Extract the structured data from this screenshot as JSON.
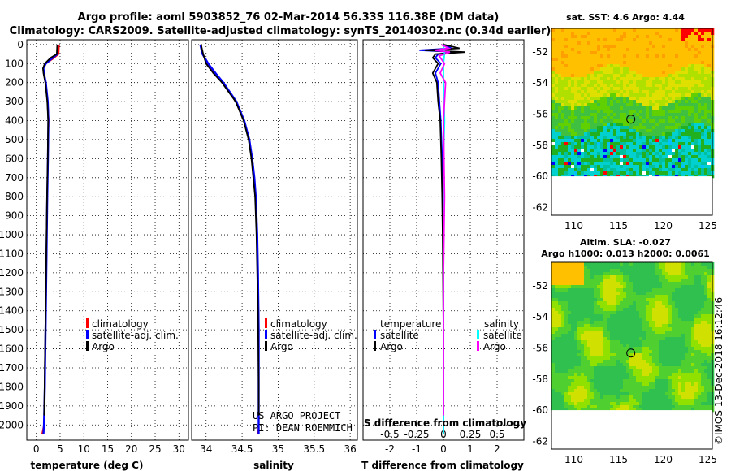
{
  "title_line1": "Argo profile: aoml 5903852_76 02-Mar-2014 56.33S 116.38E (DM data)",
  "title_line2": "Climatology: CARS2009. Satellite-adjusted climatology: synTS_20140302.nc (0.34d earlier)",
  "colors": {
    "climatology": "#ff0000",
    "satellite_adj": "#0000ff",
    "argo": "#000000",
    "satellite_sal": "#00ffff",
    "argo_sal": "#ff00ff",
    "grid": "#000000",
    "mask": "#ffffff"
  },
  "chart_data": [
    {
      "type": "line",
      "name": "temperature-profile",
      "xlabel": "temperature (deg C)",
      "ylabel": "",
      "xlim": [
        -2,
        32
      ],
      "ylim": [
        2080,
        -25
      ],
      "x_ticks": [
        0,
        5,
        10,
        15,
        20,
        25,
        30
      ],
      "y_ticks": [
        0,
        100,
        200,
        300,
        400,
        500,
        600,
        700,
        800,
        900,
        1000,
        1100,
        1200,
        1300,
        1400,
        1500,
        1600,
        1700,
        1800,
        1900,
        2000
      ],
      "series": [
        {
          "name": "climatology",
          "depth": [
            0,
            50,
            75,
            100,
            125,
            150,
            200,
            300,
            400,
            500,
            600,
            800,
            1000,
            1400,
            1800,
            2000,
            2050
          ],
          "values": [
            4.8,
            4.7,
            3.5,
            2.0,
            1.5,
            1.6,
            2.0,
            2.4,
            2.6,
            2.5,
            2.45,
            2.3,
            2.2,
            2.0,
            1.8,
            1.6,
            1.2
          ]
        },
        {
          "name": "satellite-adj. clim.",
          "depth": [
            0,
            50,
            75,
            100,
            125,
            150,
            200,
            300,
            400,
            500,
            600,
            800,
            1000,
            1400,
            1800,
            2000,
            2050
          ],
          "values": [
            4.5,
            4.4,
            3.2,
            2.0,
            1.5,
            1.6,
            2.0,
            2.4,
            2.55,
            2.5,
            2.45,
            2.3,
            2.2,
            2.0,
            1.8,
            1.6,
            1.5
          ]
        },
        {
          "name": "Argo",
          "depth": [
            0,
            50,
            70,
            100,
            125,
            150,
            200,
            300,
            400,
            500,
            600,
            800,
            1000,
            1400,
            1800,
            1950
          ],
          "values": [
            4.4,
            4.3,
            3.0,
            1.8,
            1.4,
            1.5,
            1.9,
            2.3,
            2.5,
            2.45,
            2.4,
            2.25,
            2.15,
            1.95,
            1.75,
            1.65
          ]
        }
      ],
      "legend": [
        "climatology",
        "satellite-adj. clim.",
        "Argo"
      ],
      "legend_placement": "lower-right"
    },
    {
      "type": "line",
      "name": "salinity-profile",
      "xlabel": "salinity",
      "xlim": [
        33.8,
        36.1
      ],
      "ylim": [
        2080,
        -25
      ],
      "x_ticks": [
        34,
        34.5,
        35,
        35.5,
        36
      ],
      "x_tick_labels": [
        "34",
        "34.5",
        "35",
        "35.5",
        "36"
      ],
      "series": [
        {
          "name": "climatology",
          "depth": [
            0,
            50,
            100,
            150,
            200,
            300,
            400,
            500,
            600,
            700,
            800,
            1000,
            1200,
            1500,
            1800,
            2000,
            2050
          ],
          "values": [
            33.93,
            33.95,
            34.02,
            34.12,
            34.23,
            34.42,
            34.53,
            34.6,
            34.64,
            34.67,
            34.69,
            34.71,
            34.72,
            34.73,
            34.73,
            34.73,
            34.72
          ]
        },
        {
          "name": "satellite-adj. clim.",
          "depth": [
            0,
            50,
            100,
            150,
            200,
            300,
            400,
            500,
            600,
            700,
            800,
            1000,
            1200,
            1500,
            1800,
            2000,
            2050
          ],
          "values": [
            33.92,
            33.95,
            34.03,
            34.13,
            34.24,
            34.42,
            34.53,
            34.6,
            34.64,
            34.67,
            34.69,
            34.71,
            34.72,
            34.73,
            34.73,
            34.73,
            34.73
          ]
        },
        {
          "name": "Argo",
          "depth": [
            0,
            50,
            100,
            150,
            200,
            300,
            400,
            500,
            600,
            800,
            1000,
            1400,
            1800,
            1950
          ],
          "values": [
            33.93,
            33.96,
            34.0,
            34.1,
            34.22,
            34.41,
            34.52,
            34.59,
            34.63,
            34.68,
            34.7,
            34.72,
            34.73,
            34.73
          ]
        }
      ],
      "legend": [
        "climatology",
        "satellite-adj. clim.",
        "Argo"
      ],
      "legend_placement": "lower-right"
    },
    {
      "type": "line",
      "name": "difference-profile",
      "xlabel": "T difference from climatology",
      "x2label": "S difference from climatology",
      "xlim": [
        -3,
        3
      ],
      "ylim": [
        2080,
        -25
      ],
      "x_ticks": [
        -2,
        -1,
        0,
        1,
        2
      ],
      "x2_ticks": [
        -0.5,
        -0.25,
        0,
        0.25,
        0.5
      ],
      "x2_tick_labels": [
        "-0.5",
        "-0.25",
        "0",
        "0.25",
        "0.5"
      ],
      "series": [
        {
          "name": "temperature satellite",
          "depth": [
            0,
            20,
            30,
            40,
            50,
            70,
            100,
            150,
            200,
            300,
            400,
            600,
            800,
            1000,
            1500,
            2000,
            2050
          ],
          "values": [
            0.0,
            0.3,
            -0.9,
            0.5,
            -0.2,
            -0.3,
            -0.1,
            -0.3,
            -0.2,
            -0.15,
            -0.1,
            -0.05,
            0.0,
            0.0,
            0.0,
            0.0,
            0.0
          ]
        },
        {
          "name": "temperature Argo",
          "depth": [
            0,
            20,
            30,
            40,
            50,
            70,
            100,
            150,
            200,
            300,
            400,
            600,
            800,
            1000,
            1500,
            1950
          ],
          "values": [
            0.0,
            0.6,
            -0.7,
            0.8,
            -0.3,
            -0.4,
            -0.2,
            -0.4,
            -0.25,
            -0.2,
            -0.12,
            -0.08,
            -0.05,
            -0.03,
            0.0,
            0.0
          ]
        },
        {
          "name": "salinity satellite",
          "depth": [
            0,
            50,
            100,
            200,
            400,
            600,
            1000,
            1500,
            2000,
            2050
          ],
          "values": [
            0.0,
            0.01,
            0.0,
            0.0,
            0.01,
            0.0,
            0.0,
            0.0,
            0.0,
            0.0
          ]
        },
        {
          "name": "salinity Argo",
          "depth": [
            0,
            20,
            30,
            40,
            60,
            100,
            150,
            200,
            400,
            800,
            1200,
            1950
          ],
          "values": [
            -0.02,
            0.05,
            -0.08,
            0.06,
            -0.04,
            0.01,
            -0.03,
            0.02,
            0.0,
            0.01,
            0.0,
            0.0
          ]
        }
      ],
      "legend_temperature_title": "temperature",
      "legend_temperature": [
        "satellite",
        "Argo"
      ],
      "legend_salinity_title": "salinity",
      "legend_salinity": [
        "satellite",
        "Argo"
      ]
    },
    {
      "type": "heatmap",
      "name": "sst-map",
      "title": "sat. SST: 4.6 Argo: 4.44",
      "xlim": [
        107.5,
        125.5
      ],
      "ylim": [
        -62.5,
        -50.5
      ],
      "data_lat_bottom": -60,
      "x_ticks": [
        110,
        115,
        120,
        125
      ],
      "y_ticks": [
        -52,
        -54,
        -56,
        -58,
        -60,
        -62
      ],
      "marker": {
        "lon": 116.38,
        "lat": -56.33
      }
    },
    {
      "type": "heatmap",
      "name": "sla-map",
      "title_line1": "Altim. SLA: -0.027",
      "title_line2": "Argo h1000: 0.013 h2000: 0.0061",
      "xlim": [
        107.5,
        125.5
      ],
      "ylim": [
        -62.5,
        -50.5
      ],
      "data_lat_bottom": -60,
      "x_ticks": [
        110,
        115,
        120,
        125
      ],
      "y_ticks": [
        -52,
        -54,
        -56,
        -58,
        -60,
        -62
      ],
      "marker": {
        "lon": 116.38,
        "lat": -56.33
      }
    }
  ],
  "credits": {
    "line1": "US ARGO PROJECT",
    "line2": "PI: DEAN ROEMMICH",
    "imos": "©IMOS 13-Dec-2018 16:12:46"
  }
}
